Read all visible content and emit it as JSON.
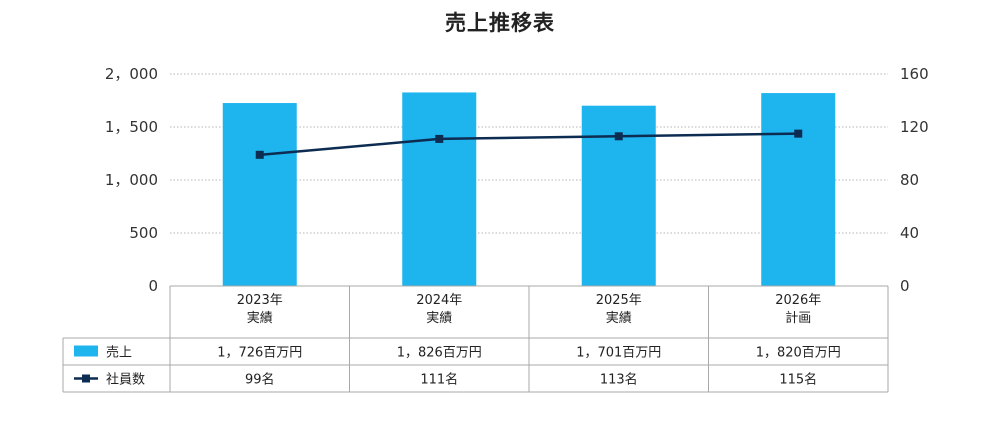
{
  "chart_data": {
    "type": "bar",
    "title": "売上推移表",
    "categories": [
      [
        "2023年",
        "実績"
      ],
      [
        "2024年",
        "実績"
      ],
      [
        "2025年",
        "実績"
      ],
      [
        "2026年",
        "計画"
      ]
    ],
    "series": [
      {
        "name": "売上",
        "type": "bar",
        "axis": "left",
        "color": "#1eb4ee",
        "values": [
          1726,
          1826,
          1701,
          1820
        ],
        "table_labels": [
          "1，726百万円",
          "1，826百万円",
          "1，701百万円",
          "1，820百万円"
        ]
      },
      {
        "name": "社員数",
        "type": "line",
        "axis": "right",
        "color": "#0d2c52",
        "values": [
          99,
          111,
          113,
          115
        ],
        "table_labels": [
          "99名",
          "111名",
          "113名",
          "115名"
        ]
      }
    ],
    "y_left": {
      "ylim": [
        0,
        2000
      ],
      "ticks": [
        0,
        500,
        1000,
        1500,
        2000
      ],
      "tick_labels": [
        "0",
        "500",
        "1，000",
        "1，500",
        "2，000"
      ]
    },
    "y_right": {
      "ylim": [
        0,
        160
      ],
      "ticks": [
        0,
        40,
        80,
        120,
        160
      ],
      "tick_labels": [
        "0",
        "40",
        "80",
        "120",
        "160"
      ]
    },
    "grid": true,
    "legend": "data-table"
  }
}
